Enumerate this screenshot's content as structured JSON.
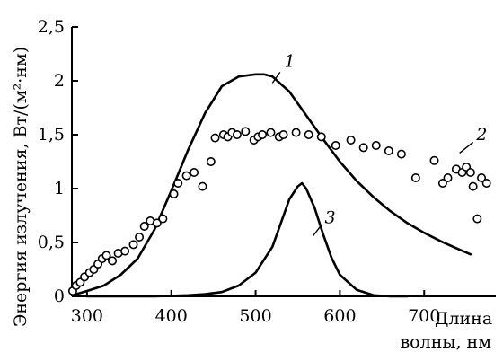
{
  "chart_data": {
    "type": "line",
    "ylabel": "Энергия излучения, Вт/(м²·нм)",
    "xlabel_line1": "Длина",
    "xlabel_line2": "волны, нм",
    "xlim": [
      280,
      760
    ],
    "ylim": [
      0,
      2.5
    ],
    "grid": false,
    "x_ticks": [
      {
        "value": 300,
        "label": "300"
      },
      {
        "value": 400,
        "label": "400"
      },
      {
        "value": 500,
        "label": "500"
      },
      {
        "value": 600,
        "label": "600"
      },
      {
        "value": 700,
        "label": "700"
      }
    ],
    "y_ticks": [
      {
        "value": 0,
        "label": "0"
      },
      {
        "value": 0.5,
        "label": "0,5"
      },
      {
        "value": 1,
        "label": "1"
      },
      {
        "value": 1.5,
        "label": "1,5"
      },
      {
        "value": 2,
        "label": "2"
      },
      {
        "value": 2.5,
        "label": "2,5"
      }
    ],
    "series": [
      {
        "label": "1",
        "style": "line",
        "x": [
          287,
          300,
          320,
          340,
          360,
          380,
          400,
          420,
          440,
          460,
          480,
          500,
          510,
          520,
          540,
          560,
          580,
          600,
          620,
          640,
          660,
          680,
          700,
          720,
          740,
          755
        ],
        "y": [
          0.02,
          0.05,
          0.1,
          0.2,
          0.35,
          0.62,
          0.98,
          1.36,
          1.7,
          1.95,
          2.04,
          2.06,
          2.06,
          2.04,
          1.9,
          1.68,
          1.46,
          1.25,
          1.07,
          0.92,
          0.79,
          0.68,
          0.59,
          0.51,
          0.44,
          0.39
        ],
        "label_at": [
          534,
          2.13
        ],
        "leader_from": [
          529,
          2.08
        ],
        "leader_to": [
          520,
          1.98
        ]
      },
      {
        "label": "2",
        "style": "points",
        "x": [
          283,
          287,
          292,
          297,
          303,
          308,
          313,
          318,
          323,
          330,
          337,
          345,
          355,
          362,
          368,
          375,
          383,
          390,
          403,
          408,
          418,
          427,
          437,
          447,
          452,
          462,
          467,
          472,
          478,
          488,
          498,
          503,
          508,
          518,
          528,
          533,
          548,
          563,
          578,
          595,
          613,
          628,
          643,
          658,
          673,
          690,
          712,
          722,
          728,
          738,
          745,
          750,
          755,
          758,
          763,
          768,
          774
        ],
        "y": [
          0.05,
          0.1,
          0.13,
          0.18,
          0.22,
          0.25,
          0.3,
          0.35,
          0.38,
          0.33,
          0.4,
          0.42,
          0.48,
          0.55,
          0.65,
          0.7,
          0.68,
          0.72,
          0.95,
          1.05,
          1.12,
          1.15,
          1.02,
          1.25,
          1.47,
          1.5,
          1.48,
          1.52,
          1.5,
          1.53,
          1.45,
          1.48,
          1.5,
          1.52,
          1.48,
          1.5,
          1.52,
          1.5,
          1.48,
          1.4,
          1.45,
          1.38,
          1.4,
          1.35,
          1.32,
          1.1,
          1.26,
          1.05,
          1.1,
          1.18,
          1.15,
          1.2,
          1.15,
          1.02,
          0.72,
          1.1,
          1.05
        ],
        "label_at": [
          762,
          1.45
        ],
        "leader_from": [
          758,
          1.43
        ],
        "leader_to": [
          742,
          1.33
        ]
      },
      {
        "label": "3",
        "style": "line",
        "x": [
          300,
          380,
          420,
          440,
          460,
          480,
          500,
          520,
          530,
          540,
          550,
          555,
          560,
          570,
          580,
          590,
          600,
          620,
          640,
          660,
          680
        ],
        "y": [
          0,
          0,
          0.01,
          0.02,
          0.04,
          0.1,
          0.22,
          0.46,
          0.68,
          0.9,
          1.02,
          1.05,
          1.0,
          0.82,
          0.58,
          0.36,
          0.2,
          0.06,
          0.01,
          0,
          0
        ],
        "label_at": [
          582,
          0.68
        ],
        "leader_from": [
          578,
          0.66
        ],
        "leader_to": [
          568,
          0.56
        ]
      }
    ]
  }
}
